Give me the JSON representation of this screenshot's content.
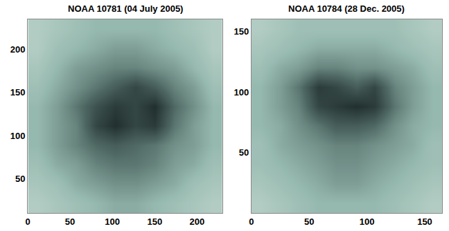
{
  "chart_data": [
    {
      "type": "heatmap",
      "title": "NOAA 10781 (04 July 2005)",
      "x": [
        12,
        35,
        58,
        81,
        104,
        127,
        150,
        173,
        196,
        219
      ],
      "y": [
        21,
        44,
        66,
        89,
        111,
        134,
        156,
        179,
        201,
        224
      ],
      "z": [
        [
          0.8,
          0.75,
          0.7,
          0.65,
          0.6,
          0.6,
          0.65,
          0.7,
          0.75,
          0.8
        ],
        [
          0.75,
          0.7,
          0.6,
          0.55,
          0.5,
          0.5,
          0.55,
          0.6,
          0.7,
          0.75
        ],
        [
          0.7,
          0.6,
          0.55,
          0.45,
          0.4,
          0.4,
          0.45,
          0.55,
          0.6,
          0.7
        ],
        [
          0.65,
          0.55,
          0.45,
          0.35,
          0.3,
          0.35,
          0.4,
          0.5,
          0.55,
          0.65
        ],
        [
          0.65,
          0.55,
          0.45,
          0.2,
          0.1,
          0.2,
          0.15,
          0.4,
          0.55,
          0.65
        ],
        [
          0.65,
          0.55,
          0.4,
          0.25,
          0.15,
          0.2,
          0.1,
          0.35,
          0.5,
          0.65
        ],
        [
          0.7,
          0.6,
          0.5,
          0.4,
          0.3,
          0.2,
          0.3,
          0.45,
          0.55,
          0.7
        ],
        [
          0.75,
          0.65,
          0.55,
          0.5,
          0.45,
          0.45,
          0.5,
          0.55,
          0.65,
          0.75
        ],
        [
          0.8,
          0.7,
          0.65,
          0.6,
          0.55,
          0.55,
          0.6,
          0.65,
          0.7,
          0.8
        ],
        [
          0.8,
          0.75,
          0.7,
          0.65,
          0.65,
          0.65,
          0.65,
          0.7,
          0.75,
          0.8
        ]
      ],
      "zlim": [
        0,
        1
      ],
      "xlim": [
        0,
        230
      ],
      "ylim": [
        10,
        235
      ],
      "xticks": [
        0,
        50,
        100,
        150,
        200
      ],
      "yticks": [
        50,
        100,
        150,
        200
      ]
    },
    {
      "type": "heatmap",
      "title": "NOAA 10784 (28 Dec. 2005)",
      "x": [
        8,
        25,
        41,
        58,
        74,
        91,
        107,
        124,
        140,
        157
      ],
      "y": [
        8,
        24,
        40,
        56,
        72,
        88,
        104,
        120,
        136,
        152
      ],
      "z": [
        [
          0.8,
          0.75,
          0.7,
          0.65,
          0.65,
          0.65,
          0.65,
          0.7,
          0.75,
          0.8
        ],
        [
          0.75,
          0.7,
          0.65,
          0.6,
          0.55,
          0.55,
          0.6,
          0.65,
          0.7,
          0.75
        ],
        [
          0.7,
          0.65,
          0.6,
          0.55,
          0.5,
          0.5,
          0.55,
          0.6,
          0.65,
          0.7
        ],
        [
          0.7,
          0.6,
          0.55,
          0.5,
          0.45,
          0.45,
          0.5,
          0.55,
          0.6,
          0.7
        ],
        [
          0.65,
          0.6,
          0.5,
          0.4,
          0.3,
          0.3,
          0.35,
          0.5,
          0.6,
          0.65
        ],
        [
          0.65,
          0.55,
          0.45,
          0.2,
          0.15,
          0.1,
          0.15,
          0.4,
          0.55,
          0.65
        ],
        [
          0.65,
          0.55,
          0.4,
          0.15,
          0.2,
          0.3,
          0.2,
          0.45,
          0.55,
          0.65
        ],
        [
          0.7,
          0.6,
          0.55,
          0.45,
          0.45,
          0.5,
          0.5,
          0.55,
          0.6,
          0.7
        ],
        [
          0.75,
          0.7,
          0.65,
          0.6,
          0.6,
          0.6,
          0.6,
          0.65,
          0.7,
          0.75
        ],
        [
          0.8,
          0.75,
          0.7,
          0.7,
          0.7,
          0.7,
          0.7,
          0.7,
          0.75,
          0.8
        ]
      ],
      "zlim": [
        0,
        1
      ],
      "xlim": [
        0,
        165
      ],
      "ylim": [
        0,
        160
      ],
      "xticks": [
        0,
        50,
        100,
        150
      ],
      "yticks": [
        50,
        100,
        150
      ]
    }
  ]
}
